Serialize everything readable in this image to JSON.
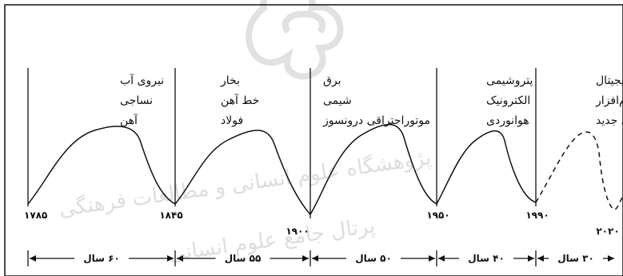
{
  "eras": [
    {
      "year": "۱۷۸۵",
      "lines": [
        "نیروی آب",
        "نساجی",
        "آهن"
      ]
    },
    {
      "year": "۱۸۴۵",
      "lines": [
        "بخار",
        "خط آهن",
        "فولاد"
      ]
    },
    {
      "year": "۱۹۰۰",
      "lines": [
        "برق",
        "شیمی",
        "موتوراحتراقی درونسوز"
      ]
    },
    {
      "year": "۱۹۵۰",
      "lines": [
        "پتروشیمی",
        "الکترونیک",
        "هوانوردی"
      ]
    },
    {
      "year": "۱۹۹۰",
      "lines": [
        "شبکه‌های دیجیتال",
        "نرم‌افزار",
        "رسانه‌های جدید"
      ]
    },
    {
      "year": "۲۰۲۰",
      "lines": []
    }
  ],
  "spans": [
    "۶۰ سال",
    "۵۵ سال",
    "۵۰ سال",
    "۴۰ سال",
    "۳۰ سال"
  ],
  "watermark": {
    "line1": "پژوهشگاه علوم انسانی و مطالعات فرهنگی",
    "line2": "پرتال جامع علوم انسانی"
  }
}
